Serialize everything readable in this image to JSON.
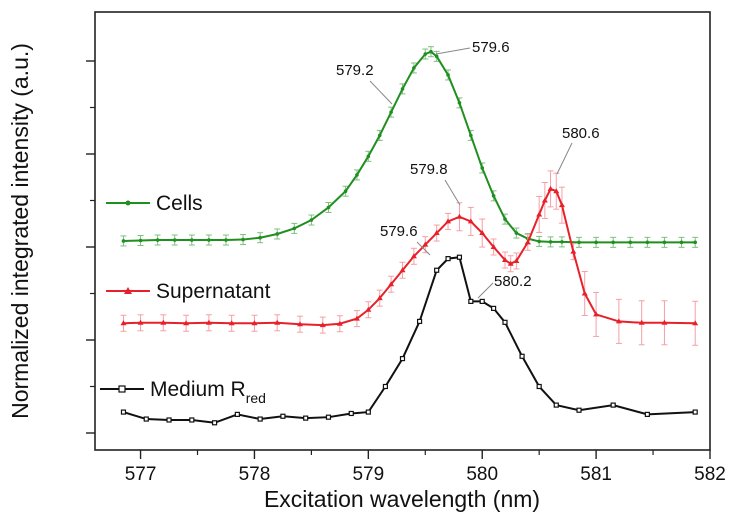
{
  "chart_data": {
    "type": "line",
    "xlabel": "Excitation wavelength (nm)",
    "ylabel": "Normalized integrated intensity (a.u.)",
    "xlim": [
      576.6,
      582
    ],
    "x_ticks": [
      577,
      578,
      579,
      580,
      581,
      582
    ],
    "y_ticks_shown_unlabeled": true,
    "grid": false,
    "series": [
      {
        "name": "Cells",
        "color": "#1f8f1f",
        "marker": "dot",
        "error_bars": true,
        "x": [
          576.85,
          577.0,
          577.15,
          577.3,
          577.45,
          577.6,
          577.75,
          577.9,
          578.05,
          578.2,
          578.35,
          578.5,
          578.65,
          578.8,
          578.9,
          579.0,
          579.1,
          579.2,
          579.3,
          579.4,
          579.5,
          579.55,
          579.6,
          579.7,
          579.8,
          579.9,
          580.0,
          580.1,
          580.2,
          580.3,
          580.4,
          580.5,
          580.6,
          580.7,
          580.85,
          581.0,
          581.15,
          581.3,
          581.45,
          581.6,
          581.75,
          581.87
        ],
        "y": [
          0.413,
          0.414,
          0.415,
          0.415,
          0.415,
          0.415,
          0.415,
          0.416,
          0.42,
          0.428,
          0.44,
          0.458,
          0.485,
          0.52,
          0.555,
          0.595,
          0.64,
          0.69,
          0.74,
          0.785,
          0.815,
          0.82,
          0.81,
          0.77,
          0.71,
          0.64,
          0.57,
          0.51,
          0.46,
          0.43,
          0.418,
          0.412,
          0.411,
          0.411,
          0.41,
          0.41,
          0.41,
          0.41,
          0.41,
          0.41,
          0.41,
          0.41
        ]
      },
      {
        "name": "Supernatant",
        "color": "#e8202a",
        "marker": "triangle",
        "error_bars": true,
        "x": [
          576.85,
          577.0,
          577.2,
          577.4,
          577.6,
          577.8,
          578.0,
          578.2,
          578.4,
          578.6,
          578.75,
          578.9,
          579.0,
          579.1,
          579.2,
          579.3,
          579.4,
          579.5,
          579.6,
          579.7,
          579.8,
          579.9,
          580.0,
          580.1,
          580.2,
          580.25,
          580.3,
          580.4,
          580.5,
          580.55,
          580.6,
          580.65,
          580.7,
          580.8,
          580.9,
          581.0,
          581.2,
          581.4,
          581.6,
          581.87
        ],
        "y": [
          0.236,
          0.237,
          0.237,
          0.236,
          0.237,
          0.236,
          0.236,
          0.237,
          0.234,
          0.232,
          0.235,
          0.246,
          0.265,
          0.29,
          0.32,
          0.35,
          0.38,
          0.405,
          0.43,
          0.455,
          0.465,
          0.455,
          0.43,
          0.4,
          0.372,
          0.364,
          0.37,
          0.41,
          0.47,
          0.5,
          0.525,
          0.52,
          0.49,
          0.39,
          0.3,
          0.255,
          0.24,
          0.237,
          0.237,
          0.236
        ]
      },
      {
        "name": "Medium R_red",
        "color": "#111111",
        "marker": "square",
        "error_bars": false,
        "x": [
          576.85,
          577.05,
          577.25,
          577.45,
          577.65,
          577.85,
          578.05,
          578.25,
          578.45,
          578.65,
          578.85,
          579.0,
          579.15,
          579.3,
          579.45,
          579.6,
          579.7,
          579.8,
          579.9,
          580.0,
          580.1,
          580.2,
          580.35,
          580.5,
          580.65,
          580.85,
          581.15,
          581.45,
          581.87
        ],
        "y": [
          0.045,
          0.03,
          0.028,
          0.028,
          0.022,
          0.04,
          0.03,
          0.036,
          0.032,
          0.034,
          0.042,
          0.045,
          0.1,
          0.16,
          0.24,
          0.35,
          0.375,
          0.378,
          0.283,
          0.283,
          0.268,
          0.238,
          0.165,
          0.1,
          0.06,
          0.049,
          0.06,
          0.04,
          0.045
        ]
      }
    ],
    "legend": [
      {
        "label": "Cells",
        "sub": ""
      },
      {
        "label": "Supernatant",
        "sub": ""
      },
      {
        "label": "Medium R",
        "sub": "red"
      }
    ],
    "annotations": [
      {
        "text": "579.2",
        "series": "Cells"
      },
      {
        "text": "579.6",
        "series": "Cells"
      },
      {
        "text": "579.8",
        "series": "Supernatant"
      },
      {
        "text": "580.6",
        "series": "Supernatant"
      },
      {
        "text": "579.6",
        "series": "Medium R_red"
      },
      {
        "text": "580.2",
        "series": "Medium R_red"
      }
    ]
  }
}
